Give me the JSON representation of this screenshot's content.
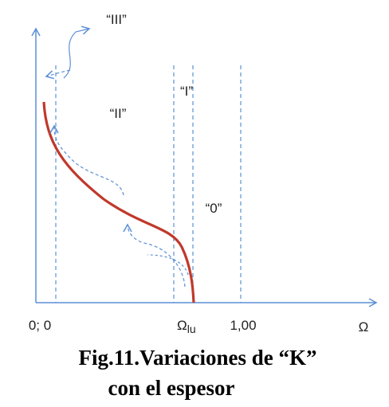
{
  "labels": {
    "region_iii": "“III”",
    "region_i": "“I”",
    "region_ii": "“II”",
    "region_0": "“0”"
  },
  "axis": {
    "origin": "0; 0",
    "omega_lu": {
      "main": "Ω",
      "sub": "lu"
    },
    "one": "1,00",
    "x_label": "Ω"
  },
  "caption": {
    "line1": "Fig.11.Variaciones de “K”",
    "line2": "con el espesor"
  }
}
